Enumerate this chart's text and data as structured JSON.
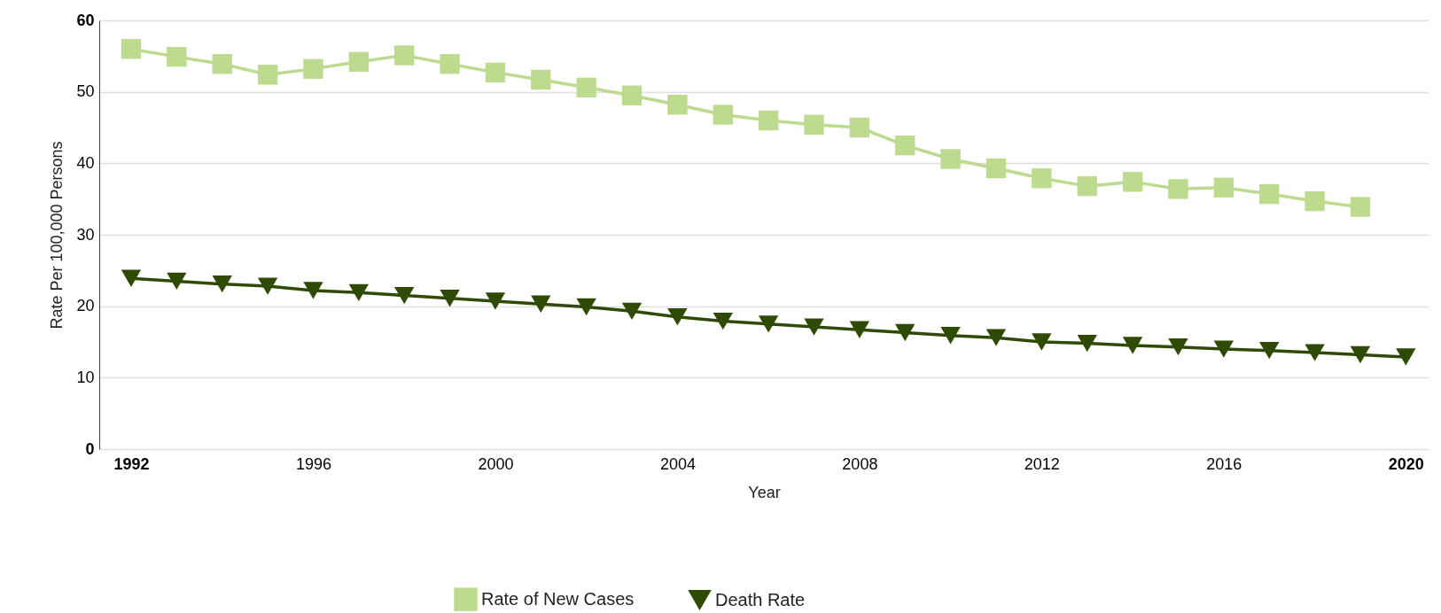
{
  "chart_data": {
    "type": "line",
    "xlabel": "Year",
    "ylabel": "Rate Per 100,000 Persons",
    "x": [
      1992,
      1993,
      1994,
      1995,
      1996,
      1997,
      1998,
      1999,
      2000,
      2001,
      2002,
      2003,
      2004,
      2005,
      2006,
      2007,
      2008,
      2009,
      2010,
      2011,
      2012,
      2013,
      2014,
      2015,
      2016,
      2017,
      2018,
      2019,
      2020
    ],
    "series": [
      {
        "name": "Rate of New Cases",
        "color": "#bcdb8f",
        "marker": "square",
        "values": [
          56.0,
          54.9,
          53.9,
          52.4,
          53.2,
          54.2,
          55.1,
          53.9,
          52.7,
          51.7,
          50.6,
          49.5,
          48.2,
          46.8,
          46.0,
          45.4,
          45.0,
          42.5,
          40.6,
          39.3,
          37.9,
          36.8,
          37.4,
          36.4,
          36.6,
          35.7,
          34.7,
          33.9,
          null
        ]
      },
      {
        "name": "Death Rate",
        "color": "#2f4a05",
        "marker": "triangle",
        "values": [
          23.9,
          23.5,
          23.1,
          22.8,
          22.2,
          21.9,
          21.5,
          21.1,
          20.7,
          20.3,
          19.9,
          19.3,
          18.5,
          17.9,
          17.5,
          17.1,
          16.7,
          16.3,
          15.9,
          15.6,
          15.0,
          14.8,
          14.5,
          14.3,
          14.0,
          13.8,
          13.5,
          13.2,
          12.9
        ]
      }
    ],
    "xlim": [
      1991.3,
      2020.5
    ],
    "xticks": [
      1992,
      1996,
      2000,
      2004,
      2008,
      2012,
      2016,
      2020
    ],
    "ylim": [
      0,
      60
    ],
    "yticks": [
      0,
      10,
      20,
      30,
      40,
      50,
      60
    ],
    "grid": "y",
    "legend": "bottom",
    "line_style": "solid"
  }
}
